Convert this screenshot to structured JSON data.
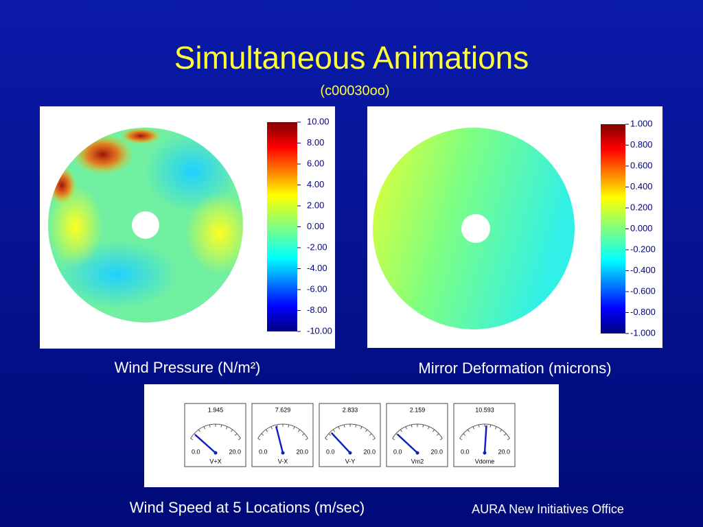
{
  "title": "Simultaneous Animations",
  "subtitle": "(c00030oo)",
  "panels": [
    {
      "caption": "Wind Pressure (N/m²)",
      "colorbar_ticks": [
        {
          "value": 10,
          "label": "10.00"
        },
        {
          "value": 8,
          "label": "8.00"
        },
        {
          "value": 6,
          "label": "6.00"
        },
        {
          "value": 4,
          "label": "4.00"
        },
        {
          "value": 2,
          "label": "2.00"
        },
        {
          "value": 0,
          "label": "0.00"
        },
        {
          "value": -2,
          "label": "-2.00"
        },
        {
          "value": -4,
          "label": "-4.00"
        },
        {
          "value": -6,
          "label": "-6.00"
        },
        {
          "value": -8,
          "label": "-8.00"
        },
        {
          "value": -10,
          "label": "-10.00"
        }
      ]
    },
    {
      "caption": "Mirror Deformation (microns)",
      "colorbar_ticks": [
        {
          "value": 1,
          "label": "1.000"
        },
        {
          "value": 0.8,
          "label": "0.800"
        },
        {
          "value": 0.6,
          "label": "0.600"
        },
        {
          "value": 0.4,
          "label": "0.400"
        },
        {
          "value": 0.2,
          "label": "0.200"
        },
        {
          "value": 0,
          "label": "0.000"
        },
        {
          "value": -0.2,
          "label": "-0.200"
        },
        {
          "value": -0.4,
          "label": "-0.400"
        },
        {
          "value": -0.6,
          "label": "-0.600"
        },
        {
          "value": -0.8,
          "label": "-0.800"
        },
        {
          "value": -1,
          "label": "-1.000"
        }
      ]
    }
  ],
  "gauges": {
    "caption": "Wind Speed at 5 Locations (m/sec)",
    "range": [
      {
        "value": 0,
        "label": "0.0"
      },
      {
        "value": 20,
        "label": "20.0"
      }
    ],
    "items": [
      {
        "name": "V+X",
        "value": 1.945
      },
      {
        "name": "V-X",
        "value": 7.629
      },
      {
        "name": "V-Y",
        "value": 2.833
      },
      {
        "name": "Vm2",
        "value": 2.159
      },
      {
        "name": "Vdome",
        "value": 10.593
      }
    ]
  },
  "footer": "AURA New Initiatives Office"
}
